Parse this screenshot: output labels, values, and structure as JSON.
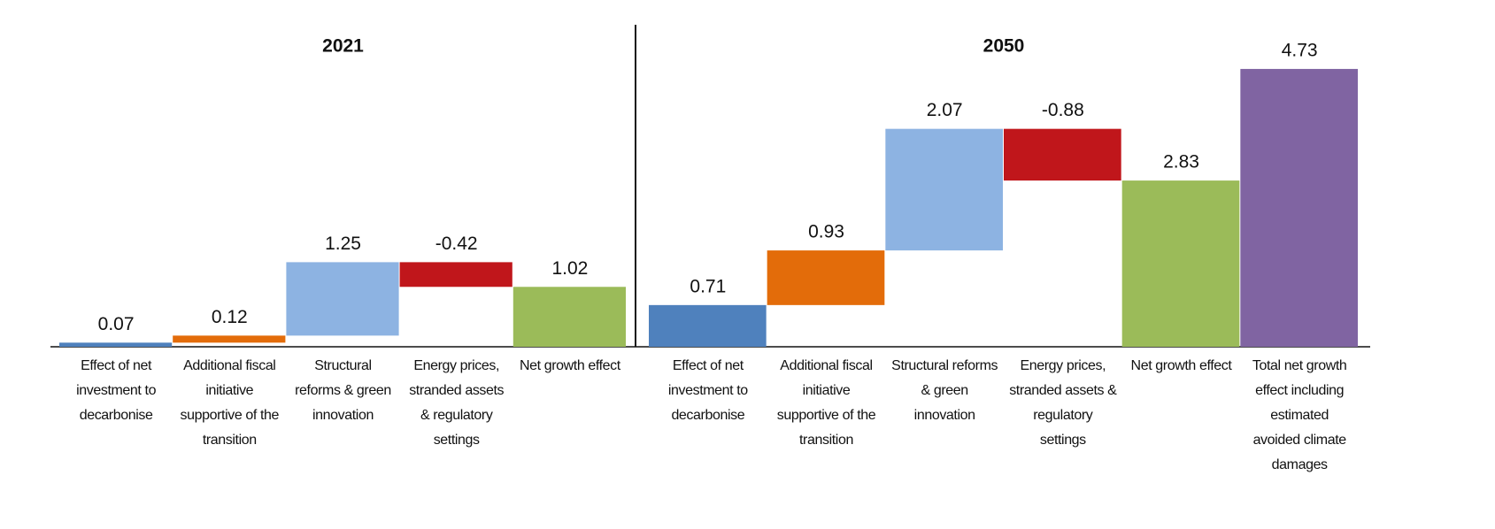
{
  "chart_data": [
    {
      "type": "waterfall",
      "title": "2021",
      "categories": [
        "Effect of net investment to decarbonise",
        "Additional fiscal initiative supportive of the transition",
        "Structural reforms & green innovation",
        "Energy prices, stranded assets & regulatory settings",
        "Net growth effect"
      ],
      "values": [
        0.07,
        0.12,
        1.25,
        -0.42,
        1.02
      ],
      "measures": [
        "relative",
        "relative",
        "relative",
        "relative",
        "total"
      ],
      "colors": [
        "#4f81bd",
        "#e36c0a",
        "#8db3e2",
        "#c0161b",
        "#9bbb59"
      ],
      "ylim": [
        0,
        5
      ]
    },
    {
      "type": "waterfall",
      "title": "2050",
      "categories": [
        "Effect of net investment to decarbonise",
        "Additional fiscal initiative supportive of the transition",
        "Structural reforms & green innovation",
        "Energy prices, stranded assets & regulatory settings",
        "Net growth effect",
        "Total net growth effect including estimated avoided climate damages"
      ],
      "values": [
        0.71,
        0.93,
        2.07,
        -0.88,
        2.83,
        4.73
      ],
      "measures": [
        "relative",
        "relative",
        "relative",
        "relative",
        "total",
        "total"
      ],
      "colors": [
        "#4f81bd",
        "#e36c0a",
        "#8db3e2",
        "#c0161b",
        "#9bbb59",
        "#8064a2"
      ],
      "ylim": [
        0,
        5
      ]
    }
  ]
}
